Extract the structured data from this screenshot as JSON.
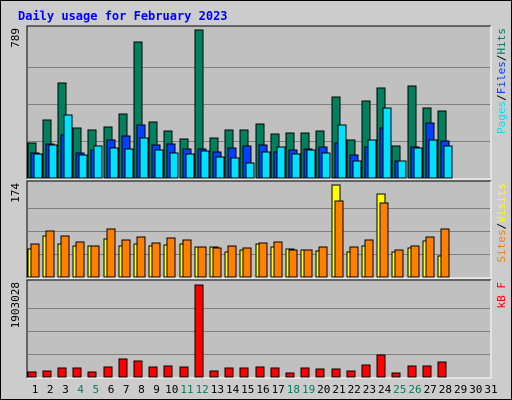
{
  "chart_data": {
    "type": "bar",
    "title": "Daily usage for February 2023",
    "colors": {
      "hits": "#00805c",
      "files": "#0040ff",
      "pages": "#00e0ff",
      "visits": "#ffff00",
      "sites": "#ff8000",
      "kbytes": "#ff0000",
      "day_normal": "#000000",
      "day_weekend": "#00805c",
      "title": "#0000ff",
      "background": "#cccccc",
      "panel": "#c0c0c0"
    },
    "x": [
      "1",
      "2",
      "3",
      "4",
      "5",
      "6",
      "7",
      "8",
      "9",
      "10",
      "11",
      "12",
      "13",
      "14",
      "15",
      "16",
      "17",
      "18",
      "19",
      "20",
      "21",
      "22",
      "23",
      "24",
      "25",
      "26",
      "27",
      "28",
      "29",
      "30",
      "31"
    ],
    "weekend_days": [
      "4",
      "5",
      "11",
      "12",
      "18",
      "19",
      "25",
      "26"
    ],
    "panels": [
      {
        "id": "hits-files-pages",
        "axis_max_label": "789",
        "ymax": 789,
        "side_label": [
          {
            "text": "Pages",
            "color": "#00e0ff"
          },
          {
            "text": "/",
            "color": "#000000"
          },
          {
            "text": "Files",
            "color": "#0040ff"
          },
          {
            "text": "/",
            "color": "#000000"
          },
          {
            "text": "Hits",
            "color": "#00805c"
          }
        ],
        "series": [
          {
            "key": "hits",
            "values": [
              189,
              309,
              508,
              267,
              258,
              272,
              340,
              725,
              297,
              251,
              210,
              789,
              215,
              257,
              257,
              290,
              233,
              241,
              241,
              253,
              431,
              202,
              408,
              481,
              173,
              490,
              371,
              357
            ]
          },
          {
            "key": "files",
            "values": [
              135,
              180,
              228,
              133,
              149,
              200,
              225,
              280,
              175,
              183,
              153,
              153,
              140,
              158,
              173,
              178,
              141,
              149,
              153,
              164,
              186,
              125,
              164,
              268,
              90,
              164,
              295,
              195
            ]
          },
          {
            "key": "pages",
            "values": [
              127,
              175,
              338,
              122,
              168,
              158,
              154,
              215,
              147,
              132,
              130,
              146,
              110,
              106,
              80,
              140,
              164,
              127,
              150,
              135,
              281,
              89,
              203,
              372,
              92,
              160,
              205,
              173
            ]
          }
        ]
      },
      {
        "id": "visits-sites",
        "axis_max_label": "174",
        "ymax": 174,
        "side_label": [
          {
            "text": "Sites",
            "color": "#ff8000"
          },
          {
            "text": "/",
            "color": "#000000"
          },
          {
            "text": "Visits",
            "color": "#ffff00"
          }
        ],
        "series": [
          {
            "key": "visits",
            "values": [
              53,
              78,
              62,
              58,
              58,
              72,
              58,
              63,
              58,
              60,
              63,
              56,
              57,
              48,
              52,
              62,
              56,
              53,
              51,
              50,
              174,
              48,
              59,
              157,
              48,
              55,
              68,
              40
            ]
          },
          {
            "key": "sites",
            "values": [
              62,
              87,
              77,
              66,
              59,
              90,
              70,
              76,
              65,
              73,
              70,
              56,
              55,
              58,
              55,
              65,
              66,
              52,
              51,
              56,
              143,
              56,
              70,
              140,
              52,
              58,
              76,
              90
            ]
          }
        ]
      },
      {
        "id": "kbytes",
        "axis_max_label": "1903028",
        "ymax": 1903028,
        "side_label": [
          {
            "text": "kB F",
            "color": "#ff0000"
          }
        ],
        "series": [
          {
            "key": "kbytes",
            "values": [
              106000,
              131000,
              181000,
              181000,
              106000,
              206000,
              381000,
              331000,
              206000,
              226000,
              206000,
              1903028,
              131000,
              181000,
              181000,
              206000,
              181000,
              81000,
              181000,
              156000,
              156000,
              131000,
              256000,
              456000,
              81000,
              231000,
              231000,
              306000
            ]
          }
        ]
      }
    ]
  }
}
